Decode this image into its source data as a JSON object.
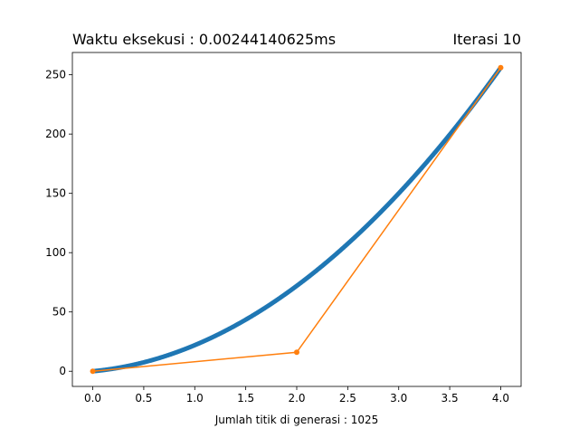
{
  "chart_data": {
    "type": "line",
    "title_left": "Waktu eksekusi : 0.00244140625ms",
    "title_right": "Iterasi 10",
    "xlabel": "Jumlah titik di generasi : 1025",
    "ylabel": "",
    "xlim": [
      -0.2,
      4.2
    ],
    "ylim": [
      -12.8,
      268.8
    ],
    "xticks": [
      0.0,
      0.5,
      1.0,
      1.5,
      2.0,
      2.5,
      3.0,
      3.5,
      4.0
    ],
    "xtick_labels": [
      "0.0",
      "0.5",
      "1.0",
      "1.5",
      "2.0",
      "2.5",
      "3.0",
      "3.5",
      "4.0"
    ],
    "yticks": [
      0,
      50,
      100,
      150,
      200,
      250
    ],
    "ytick_labels": [
      "0",
      "50",
      "100",
      "150",
      "200",
      "250"
    ],
    "grid": false,
    "series": [
      {
        "role": "generated-curve",
        "color": "#1f77b4",
        "style": "thick-line",
        "function": "quadratic-bezier",
        "control_points": [
          [
            0,
            0
          ],
          [
            2,
            16
          ],
          [
            4,
            256
          ]
        ],
        "point_count": 1025
      },
      {
        "role": "control-polygon",
        "color": "#ff7f0e",
        "style": "line-with-markers",
        "x": [
          0,
          2,
          4
        ],
        "y": [
          0,
          16,
          256
        ]
      }
    ]
  }
}
